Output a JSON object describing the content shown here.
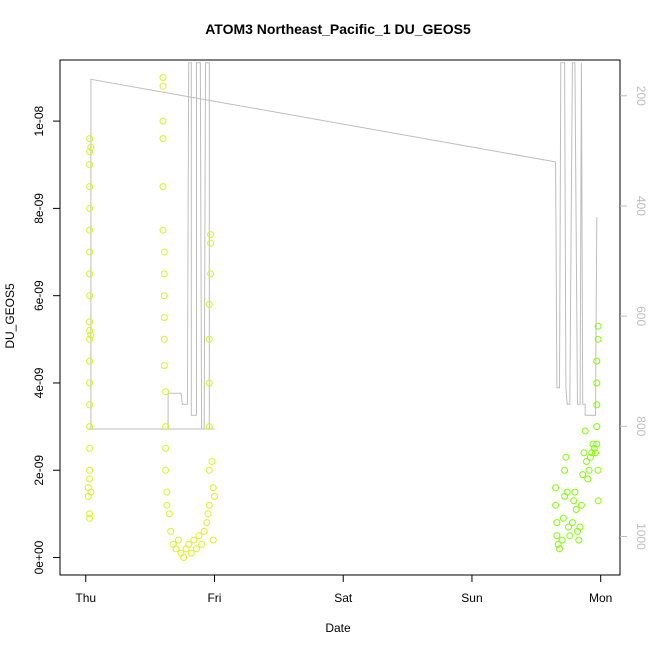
{
  "chart_data": {
    "type": "scatter",
    "title": "ATOM3 Northeast_Pacific_1 DU_GEOS5",
    "xlabel": "Date",
    "ylabel": "DU_GEOS5",
    "x_ticks": [
      "Thu",
      "Fri",
      "Sat",
      "Sun",
      "Mon"
    ],
    "x_tick_positions_days": [
      0,
      1,
      2,
      3,
      4
    ],
    "xlim_days": [
      -0.2,
      4.15
    ],
    "y_ticks": [
      "0e+00",
      "2e-09",
      "4e-09",
      "6e-09",
      "8e-09",
      "1e-08"
    ],
    "y_tick_values": [
      0,
      2e-09,
      4e-09,
      6e-09,
      8e-09,
      1e-08
    ],
    "ylim": [
      -4e-10,
      1.14e-08
    ],
    "y2_ticks": [
      "200",
      "400",
      "600",
      "800",
      "1000"
    ],
    "y2_tick_values": [
      200,
      400,
      600,
      800,
      1000
    ],
    "y2lim_reversed": [
      1070,
      135
    ],
    "grid": false,
    "colors": {
      "scatter_early": "#d6f520",
      "scatter_late": "#80ff00",
      "pressure_line": "#bdbdbd",
      "axis": "#000000"
    },
    "series": [
      {
        "type": "scatter",
        "values": [
          [
            0.02,
            1.4e-09
          ],
          [
            0.02,
            1.6e-09
          ],
          [
            0.03,
            1e-09
          ],
          [
            0.03,
            9e-10
          ],
          [
            0.03,
            1.8e-09
          ],
          [
            0.03,
            2e-09
          ],
          [
            0.03,
            2.5e-09
          ],
          [
            0.03,
            3e-09
          ],
          [
            0.03,
            3.5e-09
          ],
          [
            0.03,
            4e-09
          ],
          [
            0.03,
            4.5e-09
          ],
          [
            0.03,
            5e-09
          ],
          [
            0.03,
            5.2e-09
          ],
          [
            0.03,
            5.4e-09
          ],
          [
            0.03,
            6e-09
          ],
          [
            0.03,
            6.5e-09
          ],
          [
            0.03,
            7e-09
          ],
          [
            0.03,
            7.5e-09
          ],
          [
            0.03,
            8e-09
          ],
          [
            0.03,
            8.5e-09
          ],
          [
            0.03,
            9e-09
          ],
          [
            0.03,
            9.3e-09
          ],
          [
            0.03,
            9.6e-09
          ],
          [
            0.04,
            9.4e-09
          ],
          [
            0.04,
            5.1e-09
          ],
          [
            0.04,
            1.5e-09
          ],
          [
            0.6,
            1.1e-08
          ],
          [
            0.6,
            1.08e-08
          ],
          [
            0.6,
            1e-08
          ],
          [
            0.6,
            9.6e-09
          ],
          [
            0.6,
            8.5e-09
          ],
          [
            0.6,
            7.5e-09
          ],
          [
            0.61,
            7e-09
          ],
          [
            0.61,
            6.5e-09
          ],
          [
            0.61,
            6e-09
          ],
          [
            0.61,
            5.5e-09
          ],
          [
            0.61,
            5e-09
          ],
          [
            0.61,
            4.4e-09
          ],
          [
            0.62,
            3.8e-09
          ],
          [
            0.62,
            3e-09
          ],
          [
            0.62,
            2.5e-09
          ],
          [
            0.62,
            2e-09
          ],
          [
            0.63,
            1.5e-09
          ],
          [
            0.63,
            1.2e-09
          ],
          [
            0.65,
            1e-09
          ],
          [
            0.66,
            6e-10
          ],
          [
            0.68,
            3e-10
          ],
          [
            0.7,
            2e-10
          ],
          [
            0.72,
            4e-10
          ],
          [
            0.74,
            1e-10
          ],
          [
            0.76,
            0.0
          ],
          [
            0.78,
            2e-10
          ],
          [
            0.8,
            3e-10
          ],
          [
            0.82,
            1e-10
          ],
          [
            0.84,
            4e-10
          ],
          [
            0.86,
            2e-10
          ],
          [
            0.88,
            5e-10
          ],
          [
            0.9,
            3e-10
          ],
          [
            0.92,
            6e-10
          ],
          [
            0.94,
            8e-10
          ],
          [
            0.95,
            1e-09
          ],
          [
            0.96,
            1.2e-09
          ],
          [
            0.96,
            2e-09
          ],
          [
            0.96,
            3e-09
          ],
          [
            0.96,
            4e-09
          ],
          [
            0.96,
            5e-09
          ],
          [
            0.96,
            5.8e-09
          ],
          [
            0.97,
            6.5e-09
          ],
          [
            0.97,
            7.2e-09
          ],
          [
            0.97,
            7.4e-09
          ],
          [
            0.98,
            2.2e-09
          ],
          [
            0.99,
            1.6e-09
          ],
          [
            1.0,
            1.4e-09
          ],
          [
            0.99,
            4e-10
          ]
        ]
      },
      {
        "type": "scatter",
        "values": [
          [
            3.65,
            1.6e-09
          ],
          [
            3.65,
            1.2e-09
          ],
          [
            3.66,
            8e-10
          ],
          [
            3.66,
            5e-10
          ],
          [
            3.67,
            3e-10
          ],
          [
            3.68,
            2e-10
          ],
          [
            3.7,
            4e-10
          ],
          [
            3.71,
            9e-10
          ],
          [
            3.72,
            1.4e-09
          ],
          [
            3.72,
            2e-09
          ],
          [
            3.73,
            2.3e-09
          ],
          [
            3.74,
            1.5e-09
          ],
          [
            3.75,
            7e-10
          ],
          [
            3.76,
            5e-10
          ],
          [
            3.78,
            8e-10
          ],
          [
            3.79,
            1.3e-09
          ],
          [
            3.8,
            1.5e-09
          ],
          [
            3.81,
            1.1e-09
          ],
          [
            3.82,
            6e-10
          ],
          [
            3.83,
            4e-10
          ],
          [
            3.84,
            7e-10
          ],
          [
            3.85,
            1.2e-09
          ],
          [
            3.86,
            1.9e-09
          ],
          [
            3.87,
            2.4e-09
          ],
          [
            3.88,
            2.9e-09
          ],
          [
            3.89,
            2.2e-09
          ],
          [
            3.9,
            1.8e-09
          ],
          [
            3.91,
            2e-09
          ],
          [
            3.92,
            2.3e-09
          ],
          [
            3.93,
            2.4e-09
          ],
          [
            3.94,
            2.6e-09
          ],
          [
            3.95,
            2.5e-09
          ],
          [
            3.96,
            2.4e-09
          ],
          [
            3.97,
            2.6e-09
          ],
          [
            3.97,
            3e-09
          ],
          [
            3.97,
            3.5e-09
          ],
          [
            3.97,
            4e-09
          ],
          [
            3.97,
            4.5e-09
          ],
          [
            3.98,
            5e-09
          ],
          [
            3.98,
            5.3e-09
          ],
          [
            3.98,
            2e-09
          ],
          [
            3.98,
            1.3e-09
          ]
        ]
      },
      {
        "type": "line",
        "axis": "right",
        "values": [
          [
            0.02,
            805
          ],
          [
            0.04,
            805
          ],
          [
            0.04,
            170
          ],
          [
            3.65,
            320
          ],
          [
            3.66,
            730
          ],
          [
            3.68,
            730
          ],
          [
            3.69,
            140
          ],
          [
            3.72,
            140
          ],
          [
            3.73,
            730
          ],
          [
            3.74,
            760
          ],
          [
            3.76,
            760
          ],
          [
            3.78,
            140
          ],
          [
            3.8,
            140
          ],
          [
            3.82,
            760
          ],
          [
            3.84,
            760
          ],
          [
            3.85,
            140
          ],
          [
            3.86,
            760
          ],
          [
            3.88,
            760
          ],
          [
            3.88,
            780
          ],
          [
            3.96,
            780
          ],
          [
            3.97,
            420
          ]
        ]
      },
      {
        "type": "line",
        "axis": "right",
        "values": [
          [
            0.02,
            805
          ],
          [
            1.0,
            805
          ],
          [
            0.96,
            805
          ],
          [
            0.96,
            140
          ],
          [
            0.93,
            140
          ],
          [
            0.92,
            805
          ],
          [
            0.9,
            805
          ],
          [
            0.89,
            140
          ],
          [
            0.86,
            140
          ],
          [
            0.86,
            780
          ],
          [
            0.82,
            780
          ],
          [
            0.82,
            140
          ],
          [
            0.8,
            140
          ],
          [
            0.79,
            760
          ],
          [
            0.77,
            760
          ],
          [
            0.75,
            760
          ],
          [
            0.74,
            740
          ],
          [
            0.64,
            740
          ],
          [
            0.64,
            805
          ],
          [
            0.96,
            805
          ]
        ]
      }
    ]
  }
}
